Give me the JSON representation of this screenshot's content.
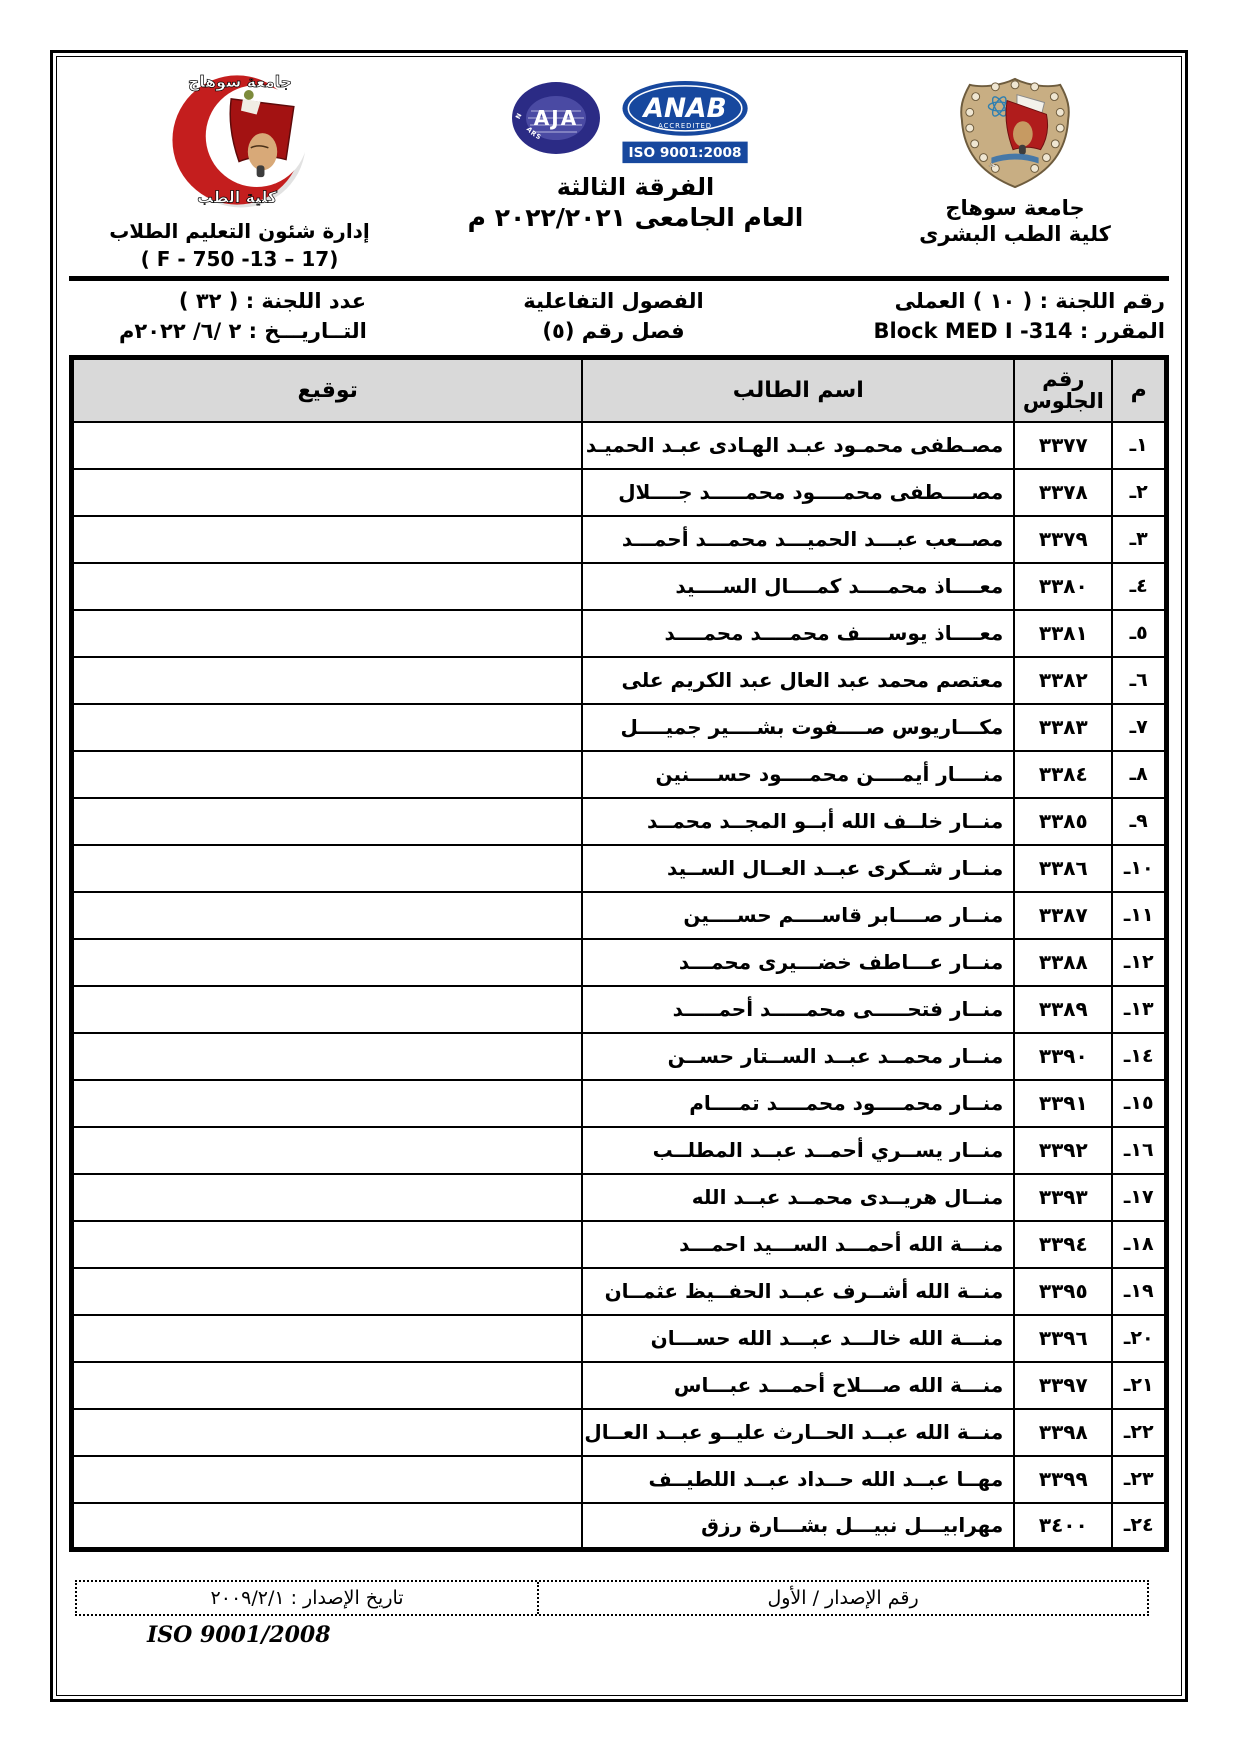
{
  "header": {
    "university_block": {
      "university": "جامعة سوهاج",
      "faculty": "كلية الطب البشرى"
    },
    "center_block": {
      "anab": {
        "name": "ANAB",
        "sub": "ACCREDITED",
        "iso": "ISO 9001:2008"
      },
      "aja": {
        "name": "AJA",
        "ring_top": "ANGLO JAPANESE AMERICAN",
        "ring_bottom": "REGISTRARS"
      },
      "grade_title": "الفرقة الثالثة",
      "year_title": "العام الجامعى ٢٠٢٢/٢٠٢١ م"
    },
    "department_block": {
      "crescent_top": "جامعة سوهاج",
      "crescent_bottom": "كلية الطب",
      "department": "إدارة شئون التعليم الطلاب",
      "form_code": "( F - 750 -13 – 17)"
    }
  },
  "info": {
    "committee_number": "رقم اللجنة : ( ١٠ ) العملى",
    "section_type": "الفصول التفاعلية",
    "committee_count": "عدد اللجنة : ( ٣٢ )",
    "course": "المقرر : Block MED I -314",
    "class_number": "فصل رقم (٥)",
    "date": "التــاريـــخ : ٢ /٦/ ٢٠٢٢م"
  },
  "table": {
    "headers": {
      "serial": "م",
      "seat": "رقم الجلوس",
      "name": "اسم الطالب",
      "signature": "توقيع"
    },
    "rows": [
      {
        "serial": "١ـ",
        "seat": "٣٣٧٧",
        "name": "مصـطفى محمـود عبـد الهـادى عبـد الحميـد"
      },
      {
        "serial": "٢ـ",
        "seat": "٣٣٧٨",
        "name": "مصــــطفى محمــــود محمـــــد جــــلال"
      },
      {
        "serial": "٣ـ",
        "seat": "٣٣٧٩",
        "name": "مصــعب عبـــد الحميـــد محمـــد أحمـــد"
      },
      {
        "serial": "٤ـ",
        "seat": "٣٣٨٠",
        "name": "معــــاذ محمــــد كمــــال الســــيد"
      },
      {
        "serial": "٥ـ",
        "seat": "٣٣٨١",
        "name": "معــــاذ يوســــف محمــــد محمــــد"
      },
      {
        "serial": "٦ـ",
        "seat": "٣٣٨٢",
        "name": "معتصم محمد عبد العال عبد الكريم على"
      },
      {
        "serial": "٧ـ",
        "seat": "٣٣٨٣",
        "name": "مكـــاريوس صــــفوت بشــــير جميــــل"
      },
      {
        "serial": "٨ـ",
        "seat": "٣٣٨٤",
        "name": "منــــار أيمــــن محمــــود حســــنين"
      },
      {
        "serial": "٩ـ",
        "seat": "٣٣٨٥",
        "name": "منــار خلــف الله أبــو المجــد محمــد"
      },
      {
        "serial": "١٠ـ",
        "seat": "٣٣٨٦",
        "name": "منــار شــكرى عبــد العــال الســيد"
      },
      {
        "serial": "١١ـ",
        "seat": "٣٣٨٧",
        "name": "منــار صــــابر قاســــم حســــين"
      },
      {
        "serial": "١٢ـ",
        "seat": "٣٣٨٨",
        "name": "منــار عـــاطف خضـــيرى محمـــد"
      },
      {
        "serial": "١٣ـ",
        "seat": "٣٣٨٩",
        "name": "منــار فتحـــــى محمـــــد أحمـــــد"
      },
      {
        "serial": "١٤ـ",
        "seat": "٣٣٩٠",
        "name": "منــار محمــد عبــد الســتار حســن"
      },
      {
        "serial": "١٥ـ",
        "seat": "٣٣٩١",
        "name": "منــار محمــــود محمــــد تمــــام"
      },
      {
        "serial": "١٦ـ",
        "seat": "٣٣٩٢",
        "name": "منــار يســري أحمــد عبــد المطلــب"
      },
      {
        "serial": "١٧ـ",
        "seat": "٣٣٩٣",
        "name": "منــال هريــدى محمــد عبــد الله"
      },
      {
        "serial": "١٨ـ",
        "seat": "٣٣٩٤",
        "name": "منـــة الله أحمـــد الســـيد احمـــد"
      },
      {
        "serial": "١٩ـ",
        "seat": "٣٣٩٥",
        "name": "منــة الله أشــرف عبــد الحفــيظ عثمــان"
      },
      {
        "serial": "٢٠ـ",
        "seat": "٣٣٩٦",
        "name": "منـــة الله خالـــد عبـــد الله حســـان"
      },
      {
        "serial": "٢١ـ",
        "seat": "٣٣٩٧",
        "name": "منـــة الله صـــلاح أحمـــد عبـــاس"
      },
      {
        "serial": "٢٢ـ",
        "seat": "٣٣٩٨",
        "name": "منــة الله عبــد الحــارث عليــو عبــد العــال"
      },
      {
        "serial": "٢٣ـ",
        "seat": "٣٣٩٩",
        "name": "مهــا عبــد الله حــداد عبــد اللطيــف"
      },
      {
        "serial": "٢٤ـ",
        "seat": "٣٤٠٠",
        "name": "مهرابيـــل نبيـــل بشـــارة رزق"
      }
    ]
  },
  "footer": {
    "issue_number": "رقم الإصدار / الأول",
    "issue_date": "تاريخ الإصدار : ٢٠٠٩/٢/١",
    "iso": "ISO 9001/2008"
  },
  "colors": {
    "border": "#000000",
    "table_header_bg": "#d9d9d9",
    "anab_blue": "#17489e",
    "aja_navy": "#2b2b85",
    "crescent_red": "#c41e1e",
    "shield_tan": "#c8ae83"
  }
}
